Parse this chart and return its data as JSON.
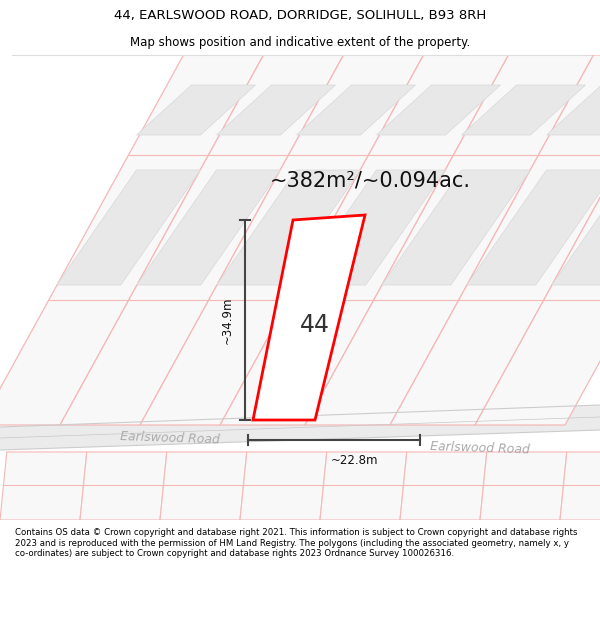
{
  "title_line1": "44, EARLSWOOD ROAD, DORRIDGE, SOLIHULL, B93 8RH",
  "title_line2": "Map shows position and indicative extent of the property.",
  "area_text": "~382m²/~0.094ac.",
  "label_44": "44",
  "dim_height": "~34.9m",
  "dim_width": "~22.8m",
  "road_label1": "Earlswood Road",
  "road_label2": "Earlswood Road",
  "footer_text": "Contains OS data © Crown copyright and database right 2021. This information is subject to Crown copyright and database rights 2023 and is reproduced with the permission of HM Land Registry. The polygons (including the associated geometry, namely x, y co-ordinates) are subject to Crown copyright and database rights 2023 Ordnance Survey 100026316.",
  "bg_color": "#ffffff",
  "map_bg": "#f8f8f8",
  "plot_outline_color": "#ff0000",
  "dim_line_color": "#444444",
  "road_label_color": "#aaaaaa",
  "header_sep_color": "#dddddd",
  "footer_sep_color": "#dddddd",
  "plot_line_color": "#f5b8b8",
  "plot_fill_outer": "#f0f0f0",
  "plot_fill_inner": "#e0e0e0",
  "road_fill": "#e8e8e8",
  "road_edge": "#cccccc"
}
